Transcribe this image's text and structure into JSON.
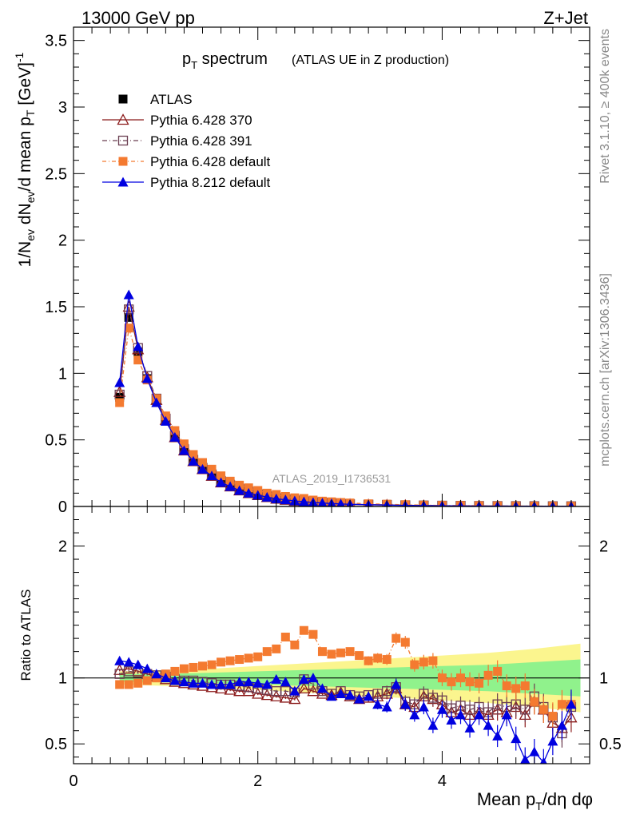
{
  "header": {
    "energy": "13000 GeV pp",
    "process": "Z+Jet"
  },
  "side_text": {
    "rivet": "Rivet 3.1.10, ≥ 400k events",
    "mcplots": "mcplots.cern.ch [arXiv:1306.3436]"
  },
  "chart_data": [
    {
      "type": "scatter",
      "panel": "main",
      "title": "p",
      "title_sub": "T",
      "title_rest": " spectrum",
      "subtitle": "(ATLAS UE in Z production)",
      "watermark": "ATLAS_2019_I1736531",
      "ylabel": "1/N_ev dN_ev/d mean p_T [GeV]^-1",
      "xlim": [
        0,
        5.6
      ],
      "ylim": [
        0,
        3.6
      ],
      "yticks": [
        "0",
        "0.5",
        "1",
        "1.5",
        "2",
        "2.5",
        "3",
        "3.5"
      ],
      "legend_position": "top-left",
      "x": [
        0.5,
        0.6,
        0.7,
        0.8,
        0.9,
        1.0,
        1.1,
        1.2,
        1.3,
        1.4,
        1.5,
        1.6,
        1.7,
        1.8,
        1.9,
        2.0,
        2.1,
        2.2,
        2.3,
        2.4,
        2.5,
        2.6,
        2.7,
        2.8,
        2.9,
        3.0,
        3.2,
        3.4,
        3.6,
        3.8,
        4.0,
        4.2,
        4.4,
        4.6,
        4.8,
        5.0,
        5.2,
        5.4
      ],
      "series": [
        {
          "name": "ATLAS",
          "color": "#000000",
          "marker": "square",
          "values": [
            0.82,
            1.42,
            1.16,
            0.96,
            0.8,
            0.66,
            0.54,
            0.44,
            0.36,
            0.3,
            0.25,
            0.2,
            0.17,
            0.14,
            0.12,
            0.1,
            0.085,
            0.07,
            0.06,
            0.05,
            0.043,
            0.037,
            0.032,
            0.028,
            0.024,
            0.02,
            0.016,
            0.013,
            0.01,
            0.008,
            0.007,
            0.006,
            0.005,
            0.004,
            0.0035,
            0.003,
            0.0025,
            0.002
          ]
        },
        {
          "name": "Pythia 6.428 370",
          "color": "#8b1a1a",
          "marker": "triangle-open",
          "values": [
            0.86,
            1.5,
            1.18,
            0.97,
            0.8,
            0.65,
            0.52,
            0.42,
            0.34,
            0.28,
            0.23,
            0.18,
            0.15,
            0.12,
            0.1,
            0.085,
            0.07,
            0.058,
            0.05,
            0.042,
            0.036,
            0.03,
            0.026,
            0.022,
            0.019,
            0.016,
            0.013,
            0.011,
            0.009,
            0.007,
            0.0055,
            0.0045,
            0.0038,
            0.003,
            0.0026,
            0.0022,
            0.0018,
            0.0015
          ]
        },
        {
          "name": "Pythia 6.428 391",
          "color": "#6b3e52",
          "marker": "square-open",
          "values": [
            0.84,
            1.48,
            1.19,
            0.98,
            0.81,
            0.66,
            0.53,
            0.43,
            0.35,
            0.29,
            0.24,
            0.19,
            0.16,
            0.13,
            0.11,
            0.09,
            0.075,
            0.062,
            0.053,
            0.045,
            0.038,
            0.032,
            0.028,
            0.024,
            0.02,
            0.017,
            0.014,
            0.012,
            0.009,
            0.0075,
            0.006,
            0.005,
            0.004,
            0.0033,
            0.0028,
            0.0023,
            0.0019,
            0.0016
          ]
        },
        {
          "name": "Pythia 6.428 default",
          "color": "#f47a30",
          "marker": "square",
          "values": [
            0.78,
            1.34,
            1.1,
            0.95,
            0.81,
            0.68,
            0.57,
            0.47,
            0.39,
            0.33,
            0.28,
            0.23,
            0.19,
            0.16,
            0.14,
            0.12,
            0.1,
            0.09,
            0.075,
            0.065,
            0.06,
            0.048,
            0.04,
            0.035,
            0.03,
            0.026,
            0.02,
            0.017,
            0.013,
            0.01,
            0.008,
            0.007,
            0.0058,
            0.0045,
            0.0038,
            0.003,
            0.0025,
            0.002
          ]
        },
        {
          "name": "Pythia 8.212 default",
          "color": "#0000e0",
          "marker": "triangle",
          "values": [
            0.93,
            1.59,
            1.2,
            0.96,
            0.78,
            0.64,
            0.52,
            0.42,
            0.34,
            0.28,
            0.23,
            0.18,
            0.15,
            0.12,
            0.1,
            0.085,
            0.07,
            0.058,
            0.05,
            0.042,
            0.036,
            0.03,
            0.026,
            0.022,
            0.019,
            0.016,
            0.013,
            0.011,
            0.008,
            0.0065,
            0.0052,
            0.0042,
            0.0033,
            0.0027,
            0.0022,
            0.0017,
            0.0014,
            0.0012
          ]
        }
      ]
    },
    {
      "type": "scatter",
      "panel": "ratio",
      "xlabel": "Mean p_T/dη dφ",
      "ylabel": "Ratio to ATLAS",
      "xlim": [
        0,
        5.6
      ],
      "ylim": [
        0.35,
        2.3
      ],
      "xticks": [
        "0",
        "2",
        "4"
      ],
      "yticks": [
        "0.5",
        "1",
        "2"
      ],
      "band_x": [
        0.5,
        1.0,
        1.5,
        2.0,
        2.5,
        3.0,
        3.5,
        4.0,
        4.5,
        5.0,
        5.5
      ],
      "band_green": [
        0.03,
        0.03,
        0.04,
        0.05,
        0.06,
        0.07,
        0.08,
        0.09,
        0.1,
        0.12,
        0.14
      ],
      "band_yellow": [
        0.05,
        0.06,
        0.07,
        0.09,
        0.11,
        0.13,
        0.15,
        0.17,
        0.19,
        0.22,
        0.26
      ],
      "x": [
        0.5,
        0.6,
        0.7,
        0.8,
        0.9,
        1.0,
        1.1,
        1.2,
        1.3,
        1.4,
        1.5,
        1.6,
        1.7,
        1.8,
        1.9,
        2.0,
        2.1,
        2.2,
        2.3,
        2.4,
        2.5,
        2.6,
        2.7,
        2.8,
        2.9,
        3.0,
        3.1,
        3.2,
        3.3,
        3.4,
        3.5,
        3.6,
        3.7,
        3.8,
        3.9,
        4.0,
        4.1,
        4.2,
        4.3,
        4.4,
        4.5,
        4.6,
        4.7,
        4.8,
        4.9,
        5.0,
        5.1,
        5.2,
        5.3,
        5.4
      ],
      "series": [
        {
          "name": "Pythia 6.428 370",
          "color": "#8b1a1a",
          "marker": "triangle-open",
          "values": [
            1.06,
            1.07,
            1.05,
            1.03,
            1.01,
            0.99,
            0.97,
            0.96,
            0.95,
            0.94,
            0.93,
            0.92,
            0.91,
            0.9,
            0.9,
            0.88,
            0.87,
            0.86,
            0.85,
            0.84,
            0.92,
            0.9,
            0.88,
            0.87,
            0.89,
            0.86,
            0.84,
            0.85,
            0.86,
            0.88,
            0.92,
            0.8,
            0.78,
            0.86,
            0.84,
            0.8,
            0.74,
            0.76,
            0.72,
            0.74,
            0.72,
            0.76,
            0.74,
            0.78,
            0.72,
            0.82,
            0.76,
            0.66,
            0.62,
            0.7
          ]
        },
        {
          "name": "Pythia 6.428 391",
          "color": "#6b3e52",
          "marker": "square-open",
          "values": [
            1.03,
            1.05,
            1.04,
            1.03,
            1.02,
            1.01,
            0.99,
            0.98,
            0.98,
            0.97,
            0.96,
            0.95,
            0.95,
            0.94,
            0.93,
            0.92,
            0.91,
            0.9,
            0.9,
            0.89,
            0.99,
            0.95,
            0.9,
            0.88,
            0.9,
            0.87,
            0.86,
            0.87,
            0.88,
            0.9,
            0.93,
            0.82,
            0.8,
            0.88,
            0.85,
            0.83,
            0.77,
            0.79,
            0.76,
            0.78,
            0.74,
            0.8,
            0.78,
            0.8,
            0.76,
            0.86,
            0.78,
            0.7,
            0.58,
            0.78
          ]
        },
        {
          "name": "Pythia 6.428 default",
          "color": "#f47a30",
          "marker": "square",
          "values": [
            0.95,
            0.95,
            0.96,
            0.98,
            1.0,
            1.03,
            1.05,
            1.07,
            1.08,
            1.09,
            1.1,
            1.12,
            1.13,
            1.14,
            1.15,
            1.16,
            1.2,
            1.22,
            1.31,
            1.25,
            1.36,
            1.33,
            1.2,
            1.18,
            1.19,
            1.2,
            1.17,
            1.13,
            1.15,
            1.14,
            1.3,
            1.27,
            1.1,
            1.12,
            1.13,
            1.0,
            0.97,
            1.0,
            0.97,
            0.96,
            1.02,
            1.05,
            0.94,
            0.92,
            0.94,
            0.82,
            0.76,
            0.71,
            0.8,
            0.8
          ]
        },
        {
          "name": "Pythia 8.212 default",
          "color": "#0000e0",
          "marker": "triangle",
          "values": [
            1.13,
            1.12,
            1.1,
            1.07,
            1.03,
            1.0,
            0.98,
            0.97,
            0.96,
            0.96,
            0.95,
            0.95,
            0.95,
            0.97,
            0.97,
            0.96,
            0.95,
            0.99,
            0.97,
            0.9,
            0.99,
            1.0,
            0.92,
            0.86,
            0.88,
            0.87,
            0.84,
            0.86,
            0.8,
            0.78,
            0.95,
            0.8,
            0.72,
            0.78,
            0.64,
            0.76,
            0.68,
            0.72,
            0.62,
            0.72,
            0.64,
            0.56,
            0.72,
            0.54,
            0.38,
            0.44,
            0.36,
            0.52,
            0.64,
            0.8
          ]
        }
      ]
    }
  ]
}
